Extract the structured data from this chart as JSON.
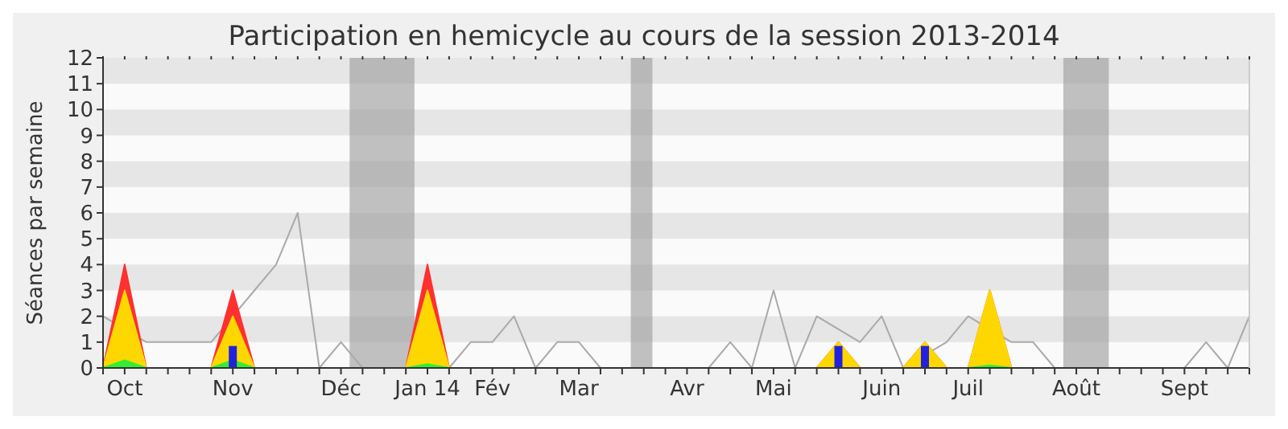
{
  "chart_data": {
    "type": "area",
    "title": "Participation en hemicycle au cours de la session 2013-2014",
    "ylabel": "Séances par semaine",
    "categories": [
      null,
      "Oct",
      null,
      null,
      null,
      null,
      "Nov",
      null,
      null,
      null,
      null,
      "Déc",
      null,
      null,
      null,
      "Jan 14",
      null,
      null,
      "Fév",
      null,
      null,
      null,
      "Mar",
      null,
      null,
      null,
      null,
      "Avr",
      null,
      null,
      null,
      "Mai",
      null,
      null,
      null,
      null,
      "Juin",
      null,
      null,
      null,
      "Juil",
      null,
      null,
      null,
      null,
      "Août",
      null,
      null,
      null,
      null,
      "Sept",
      null,
      null,
      null
    ],
    "ylim": [
      0,
      12
    ],
    "yticks": [
      0,
      1,
      2,
      3,
      4,
      5,
      6,
      7,
      8,
      9,
      10,
      11,
      12
    ],
    "series": [
      {
        "type": "line",
        "color": "#aaaaaa",
        "values": [
          2,
          null,
          1,
          1,
          1,
          1,
          null,
          3,
          4,
          6,
          0,
          1,
          0,
          0,
          0,
          null,
          0,
          1,
          1,
          2,
          0,
          1,
          1,
          0,
          0,
          0,
          0,
          0,
          0,
          1,
          0,
          3,
          0,
          2,
          null,
          1,
          2,
          0,
          null,
          1,
          2,
          null,
          1,
          1,
          0,
          0,
          0,
          0,
          0,
          0,
          0,
          1,
          0,
          2
        ]
      },
      {
        "color": "#ff3030",
        "values": [
          0,
          4,
          0,
          0,
          0,
          0,
          3,
          0,
          0,
          0,
          0,
          0,
          0,
          0,
          0,
          4,
          0,
          0,
          0,
          0,
          0,
          0,
          0,
          0,
          0,
          0,
          0,
          0,
          0,
          0,
          0,
          0,
          0,
          0,
          1,
          0,
          0,
          0,
          1,
          0,
          0,
          3,
          0,
          0,
          0,
          0,
          0,
          0,
          0,
          0,
          0,
          0,
          0,
          0
        ]
      },
      {
        "color": "#ffd700",
        "values": [
          0,
          3,
          0,
          0,
          0,
          0,
          2,
          0,
          0,
          0,
          0,
          0,
          0,
          0,
          0,
          3,
          0,
          0,
          0,
          0,
          0,
          0,
          0,
          0,
          0,
          0,
          0,
          0,
          0,
          0,
          0,
          0,
          0,
          0,
          1,
          0,
          0,
          0,
          1,
          0,
          0,
          3,
          0,
          0,
          0,
          0,
          0,
          0,
          0,
          0,
          0,
          0,
          0,
          0
        ]
      },
      {
        "color": "#33ee33",
        "values": [
          0,
          0.3,
          0,
          0,
          0,
          0,
          0.3,
          0,
          0,
          0,
          0,
          0,
          0,
          0,
          0,
          0.15,
          0,
          0,
          0,
          0,
          0,
          0,
          0,
          0,
          0,
          0,
          0,
          0,
          0,
          0,
          0,
          0,
          0,
          0,
          0,
          0,
          0,
          0,
          0,
          0,
          0,
          0.1,
          0,
          0,
          0,
          0,
          0,
          0,
          0,
          0,
          0,
          0,
          0,
          0
        ]
      },
      {
        "type": "bar",
        "color": "#2222dd",
        "values": [
          null,
          null,
          null,
          null,
          null,
          null,
          0.85,
          null,
          null,
          null,
          null,
          null,
          null,
          null,
          null,
          null,
          null,
          null,
          null,
          null,
          null,
          null,
          null,
          null,
          null,
          null,
          null,
          null,
          null,
          null,
          null,
          null,
          null,
          null,
          0.85,
          null,
          null,
          null,
          0.85,
          null,
          null,
          null,
          null,
          null,
          null,
          null,
          null,
          null,
          null,
          null,
          null,
          null,
          null,
          null
        ]
      }
    ]
  }
}
